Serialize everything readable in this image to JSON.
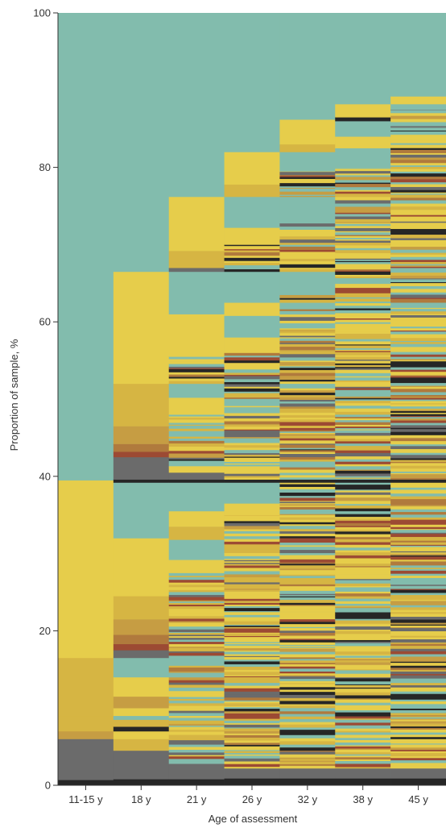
{
  "chart_data": {
    "type": "heatmap",
    "title": "",
    "xlabel": "Age of assessment",
    "ylabel": "Proportion of sample, %",
    "ylim": [
      0,
      100
    ],
    "y_ticks": [
      "0",
      "20",
      "40",
      "60",
      "80",
      "100"
    ],
    "categories": [
      "11-15 y",
      "18 y",
      "21 y",
      "26 y",
      "32 y",
      "38 y",
      "45 y"
    ],
    "colors": {
      "teal": "#82bcad",
      "yellow": "#e6cd4b",
      "gold": "#d6b543",
      "ochre": "#c69d43",
      "rust": "#b07a3d",
      "red": "#9c4a33",
      "gray": "#6b6b6b",
      "black": "#262626"
    },
    "columns": [
      {
        "category": "11-15 y",
        "segments": [
          {
            "from": 0,
            "to": 0.7,
            "color": "black"
          },
          {
            "from": 0.7,
            "to": 6,
            "color": "gray"
          },
          {
            "from": 6,
            "to": 7,
            "color": "ochre"
          },
          {
            "from": 7,
            "to": 9,
            "color": "gold"
          },
          {
            "from": 9,
            "to": 16.5,
            "color": "gold"
          },
          {
            "from": 16.5,
            "to": 39.5,
            "color": "yellow"
          },
          {
            "from": 39.5,
            "to": 100,
            "color": "teal"
          }
        ]
      },
      {
        "category": "18 y",
        "segments": [
          {
            "from": 0,
            "to": 0.8,
            "color": "black"
          },
          {
            "from": 0.8,
            "to": 4.5,
            "color": "gray"
          },
          {
            "from": 4.5,
            "to": 6,
            "color": "gold"
          },
          {
            "from": 6,
            "to": 7,
            "color": "yellow"
          },
          {
            "from": 7,
            "to": 7.6,
            "color": "black"
          },
          {
            "from": 7.6,
            "to": 8.5,
            "color": "gold"
          },
          {
            "from": 8.5,
            "to": 9,
            "color": "teal"
          },
          {
            "from": 9,
            "to": 10,
            "color": "yellow"
          },
          {
            "from": 10,
            "to": 11.5,
            "color": "ochre"
          },
          {
            "from": 11.5,
            "to": 14,
            "color": "yellow"
          },
          {
            "from": 14,
            "to": 16.5,
            "color": "teal"
          },
          {
            "from": 16.5,
            "to": 17.5,
            "color": "gray"
          },
          {
            "from": 17.5,
            "to": 18.3,
            "color": "red"
          },
          {
            "from": 18.3,
            "to": 19.5,
            "color": "rust"
          },
          {
            "from": 19.5,
            "to": 21.5,
            "color": "ochre"
          },
          {
            "from": 21.5,
            "to": 24.5,
            "color": "gold"
          },
          {
            "from": 24.5,
            "to": 32,
            "color": "yellow"
          },
          {
            "from": 32,
            "to": 39.2,
            "color": "teal"
          },
          {
            "from": 39.2,
            "to": 39.6,
            "color": "black"
          },
          {
            "from": 39.6,
            "to": 42.5,
            "color": "gray"
          },
          {
            "from": 42.5,
            "to": 43.2,
            "color": "red"
          },
          {
            "from": 43.2,
            "to": 44.2,
            "color": "rust"
          },
          {
            "from": 44.2,
            "to": 46.5,
            "color": "ochre"
          },
          {
            "from": 46.5,
            "to": 52,
            "color": "gold"
          },
          {
            "from": 52,
            "to": 66.5,
            "color": "yellow"
          },
          {
            "from": 66.5,
            "to": 100,
            "color": "teal"
          }
        ]
      },
      {
        "category": "21 y",
        "segments": [
          {
            "from": 0,
            "to": 0.8,
            "color": "black"
          },
          {
            "from": 0.8,
            "to": 2.8,
            "color": "gray"
          },
          {
            "from": 2.8,
            "to": 15.5,
            "color": "mixed"
          },
          {
            "from": 15.5,
            "to": 16.8,
            "color": "teal"
          },
          {
            "from": 16.8,
            "to": 27.5,
            "color": "mixed"
          },
          {
            "from": 27.5,
            "to": 29.2,
            "color": "yellow"
          },
          {
            "from": 29.2,
            "to": 31.8,
            "color": "teal"
          },
          {
            "from": 31.8,
            "to": 33.5,
            "color": "gold"
          },
          {
            "from": 33.5,
            "to": 35.5,
            "color": "yellow"
          },
          {
            "from": 35.5,
            "to": 39.2,
            "color": "teal"
          },
          {
            "from": 39.2,
            "to": 39.6,
            "color": "black"
          },
          {
            "from": 39.6,
            "to": 40.5,
            "color": "gray"
          },
          {
            "from": 40.5,
            "to": 41.2,
            "color": "yellow"
          },
          {
            "from": 41.2,
            "to": 48,
            "color": "mixed"
          },
          {
            "from": 48,
            "to": 50.2,
            "color": "yellow"
          },
          {
            "from": 50.2,
            "to": 52,
            "color": "teal"
          },
          {
            "from": 52,
            "to": 55.5,
            "color": "mixed"
          },
          {
            "from": 55.5,
            "to": 61,
            "color": "yellow"
          },
          {
            "from": 61,
            "to": 66.5,
            "color": "teal"
          },
          {
            "from": 66.5,
            "to": 67,
            "color": "gray"
          },
          {
            "from": 67,
            "to": 69.2,
            "color": "gold"
          },
          {
            "from": 69.2,
            "to": 76.2,
            "color": "yellow"
          },
          {
            "from": 76.2,
            "to": 100,
            "color": "teal"
          }
        ]
      },
      {
        "category": "26 y",
        "segments": [
          {
            "from": 0,
            "to": 0.9,
            "color": "black"
          },
          {
            "from": 0.9,
            "to": 2.2,
            "color": "gray"
          },
          {
            "from": 2.2,
            "to": 35,
            "color": "mixed"
          },
          {
            "from": 35,
            "to": 36.5,
            "color": "yellow"
          },
          {
            "from": 36.5,
            "to": 39.2,
            "color": "teal"
          },
          {
            "from": 39.2,
            "to": 39.6,
            "color": "black"
          },
          {
            "from": 39.6,
            "to": 56,
            "color": "mixed"
          },
          {
            "from": 56,
            "to": 58,
            "color": "yellow"
          },
          {
            "from": 58,
            "to": 60.8,
            "color": "teal"
          },
          {
            "from": 60.8,
            "to": 62.5,
            "color": "yellow"
          },
          {
            "from": 62.5,
            "to": 66.5,
            "color": "teal"
          },
          {
            "from": 66.5,
            "to": 70,
            "color": "mixed"
          },
          {
            "from": 70,
            "to": 72.2,
            "color": "yellow"
          },
          {
            "from": 72.2,
            "to": 76.2,
            "color": "teal"
          },
          {
            "from": 76.2,
            "to": 77.8,
            "color": "gold"
          },
          {
            "from": 77.8,
            "to": 82,
            "color": "yellow"
          },
          {
            "from": 82,
            "to": 100,
            "color": "teal"
          }
        ]
      },
      {
        "category": "32 y",
        "segments": [
          {
            "from": 0,
            "to": 0.9,
            "color": "black"
          },
          {
            "from": 0.9,
            "to": 2.2,
            "color": "gray"
          },
          {
            "from": 2.2,
            "to": 39.2,
            "color": "mixed"
          },
          {
            "from": 39.2,
            "to": 39.6,
            "color": "black"
          },
          {
            "from": 39.6,
            "to": 63.5,
            "color": "mixed"
          },
          {
            "from": 63.5,
            "to": 66.5,
            "color": "teal"
          },
          {
            "from": 66.5,
            "to": 73.5,
            "color": "mixed"
          },
          {
            "from": 73.5,
            "to": 76.2,
            "color": "teal"
          },
          {
            "from": 76.2,
            "to": 79.5,
            "color": "mixed"
          },
          {
            "from": 79.5,
            "to": 82,
            "color": "teal"
          },
          {
            "from": 82,
            "to": 83,
            "color": "gold"
          },
          {
            "from": 83,
            "to": 86.2,
            "color": "yellow"
          },
          {
            "from": 86.2,
            "to": 100,
            "color": "teal"
          }
        ]
      },
      {
        "category": "38 y",
        "segments": [
          {
            "from": 0,
            "to": 0.9,
            "color": "black"
          },
          {
            "from": 0.9,
            "to": 2.2,
            "color": "gray"
          },
          {
            "from": 2.2,
            "to": 39.2,
            "color": "mixed"
          },
          {
            "from": 39.2,
            "to": 39.6,
            "color": "black"
          },
          {
            "from": 39.6,
            "to": 80,
            "color": "mixed"
          },
          {
            "from": 80,
            "to": 82.5,
            "color": "teal"
          },
          {
            "from": 82.5,
            "to": 84,
            "color": "yellow"
          },
          {
            "from": 84,
            "to": 86,
            "color": "teal"
          },
          {
            "from": 86,
            "to": 86.5,
            "color": "black"
          },
          {
            "from": 86.5,
            "to": 88.2,
            "color": "yellow"
          },
          {
            "from": 88.2,
            "to": 100,
            "color": "teal"
          }
        ]
      },
      {
        "category": "45 y",
        "segments": [
          {
            "from": 0,
            "to": 0.9,
            "color": "black"
          },
          {
            "from": 0.9,
            "to": 2.2,
            "color": "gray"
          },
          {
            "from": 2.2,
            "to": 39.2,
            "color": "mixed"
          },
          {
            "from": 39.2,
            "to": 39.6,
            "color": "black"
          },
          {
            "from": 39.6,
            "to": 87.5,
            "color": "mixed"
          },
          {
            "from": 87.5,
            "to": 88.2,
            "color": "teal"
          },
          {
            "from": 88.2,
            "to": 89.2,
            "color": "yellow"
          },
          {
            "from": 89.2,
            "to": 100,
            "color": "teal"
          }
        ]
      }
    ]
  }
}
